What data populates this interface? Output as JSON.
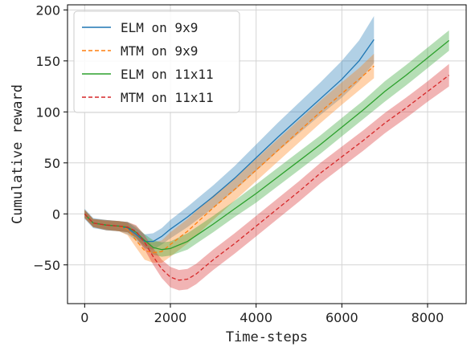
{
  "chart_data": {
    "type": "line",
    "title": "",
    "xlabel": "Time-steps",
    "ylabel": "Cumulative reward",
    "xlim": [
      -400,
      8900
    ],
    "ylim": [
      -88,
      205
    ],
    "xticks": [
      0,
      2000,
      4000,
      6000,
      8000
    ],
    "yticks": [
      -50,
      0,
      50,
      100,
      150,
      200
    ],
    "xtick_labels": [
      "0",
      "2000",
      "4000",
      "6000",
      "8000"
    ],
    "ytick_labels": [
      "−50",
      "0",
      "50",
      "100",
      "150",
      "200"
    ],
    "grid": true,
    "legend_position": "top-left",
    "series": [
      {
        "name": "ELM on 9x9",
        "color": "#1f77b4",
        "style": "solid",
        "x": [
          0,
          200,
          500,
          800,
          1000,
          1200,
          1400,
          1600,
          1800,
          2000,
          2400,
          3000,
          3500,
          4000,
          4500,
          5000,
          5500,
          6000,
          6400,
          6750
        ],
        "y": [
          0,
          -9,
          -11,
          -12,
          -14,
          -20,
          -27,
          -27,
          -22,
          -15,
          -3,
          17,
          35,
          55,
          75,
          94,
          113,
          132,
          150,
          171
        ],
        "band": [
          5,
          5,
          5,
          5,
          6,
          6,
          7,
          8,
          8,
          9,
          10,
          11,
          12,
          13,
          14,
          15,
          16,
          18,
          20,
          23
        ]
      },
      {
        "name": "MTM on 9x9",
        "color": "#ff7f0e",
        "style": "dashed",
        "x": [
          0,
          200,
          500,
          800,
          1000,
          1200,
          1400,
          1600,
          1800,
          2000,
          2400,
          3000,
          3500,
          4000,
          4500,
          5000,
          5500,
          6000,
          6400,
          6750
        ],
        "y": [
          0,
          -9,
          -11,
          -12,
          -15,
          -26,
          -36,
          -38,
          -37,
          -30,
          -17,
          6,
          24,
          43,
          62,
          81,
          100,
          118,
          132,
          145
        ],
        "band": [
          4,
          4,
          4,
          5,
          6,
          7,
          9,
          10,
          11,
          12,
          12,
          12,
          11,
          11,
          11,
          11,
          11,
          11,
          11,
          12
        ]
      },
      {
        "name": "ELM on 11x11",
        "color": "#2ca02c",
        "style": "solid",
        "x": [
          0,
          200,
          500,
          800,
          1000,
          1200,
          1400,
          1600,
          1800,
          2000,
          2400,
          3000,
          3500,
          4000,
          4500,
          5000,
          5500,
          6000,
          6500,
          7000,
          7500,
          8000,
          8500
        ],
        "y": [
          0,
          -9,
          -11,
          -12,
          -13,
          -18,
          -26,
          -33,
          -35,
          -34,
          -27,
          -10,
          5,
          20,
          36,
          52,
          68,
          85,
          102,
          120,
          136,
          153,
          170
        ],
        "band": [
          4,
          4,
          5,
          5,
          5,
          6,
          6,
          7,
          7,
          7,
          8,
          8,
          8,
          9,
          9,
          9,
          9,
          9,
          9,
          10,
          10,
          10,
          10
        ]
      },
      {
        "name": "MTM on 11x11",
        "color": "#d62728",
        "style": "dashed",
        "x": [
          0,
          200,
          500,
          800,
          1000,
          1200,
          1400,
          1600,
          1800,
          2000,
          2200,
          2400,
          2600,
          3000,
          3500,
          4000,
          4500,
          5000,
          5500,
          6000,
          6500,
          7000,
          7500,
          8000,
          8500
        ],
        "y": [
          0,
          -9,
          -11,
          -12,
          -13,
          -17,
          -28,
          -42,
          -54,
          -62,
          -65,
          -64,
          -59,
          -45,
          -29,
          -12,
          5,
          22,
          40,
          56,
          72,
          89,
          104,
          120,
          136
        ],
        "band": [
          4,
          4,
          5,
          5,
          5,
          6,
          7,
          8,
          9,
          10,
          10,
          10,
          10,
          10,
          10,
          10,
          10,
          10,
          10,
          10,
          10,
          10,
          10,
          10,
          11
        ]
      }
    ]
  }
}
